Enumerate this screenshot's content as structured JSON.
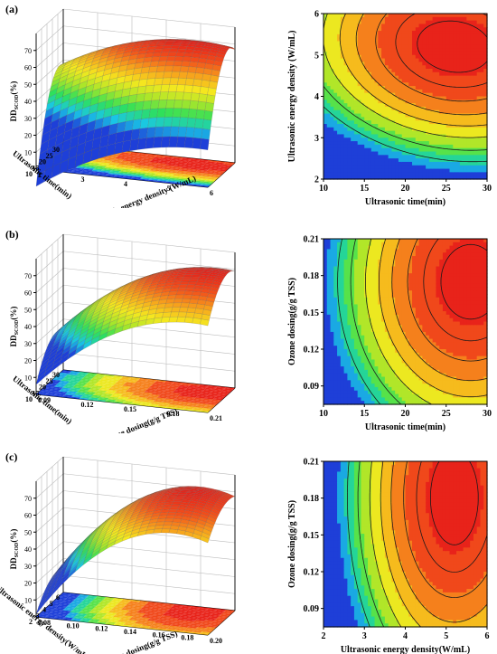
{
  "panels": [
    {
      "label": "(a)",
      "surface": {
        "zlabel": "DD",
        "zlabel_sub": "SCOD",
        "zlabel_unit": "(%)",
        "zticks": [
          "10",
          "20",
          "30",
          "40",
          "50",
          "60",
          "70"
        ],
        "x_axis_label": "Ultrasonic time(min)",
        "x_ticks": [
          "30",
          "25",
          "20",
          "15",
          "10"
        ],
        "y_axis_label": "Ultrasonic energy density (W/mL)",
        "y_ticks": [
          "6",
          "5",
          "4",
          "3",
          "2"
        ]
      },
      "contour": {
        "xlabel": "Ultrasonic time(min)",
        "ylabel": "Ultrasonic energy density (W/mL)",
        "xticks": [
          "10",
          "15",
          "20",
          "25",
          "30"
        ],
        "yticks": [
          "2",
          "3",
          "4",
          "5",
          "6"
        ]
      }
    },
    {
      "label": "(b)",
      "surface": {
        "zlabel": "DD",
        "zlabel_sub": "SCOD",
        "zlabel_unit": "(%)",
        "zticks": [
          "10",
          "20",
          "30",
          "40",
          "50",
          "60",
          "70"
        ],
        "x_axis_label": "Ultrasonic time(min)",
        "x_ticks": [
          "30",
          "25",
          "20",
          "15",
          "10"
        ],
        "y_axis_label": "Ozone dosing(g/g TSS)",
        "y_ticks": [
          "0.21",
          "0.18",
          "0.15",
          "0.12",
          "0.09"
        ]
      },
      "contour": {
        "xlabel": "Ultrasonic time(min)",
        "ylabel": "Ozone dosing(g/g TSS)",
        "xticks": [
          "10",
          "15",
          "20",
          "25",
          "30"
        ],
        "yticks": [
          "0.09",
          "0.12",
          "0.15",
          "0.18",
          "0.21"
        ]
      }
    },
    {
      "label": "(c)",
      "surface": {
        "zlabel": "DD",
        "zlabel_sub": "SCOD",
        "zlabel_unit": "(%)",
        "zticks": [
          "10",
          "20",
          "30",
          "40",
          "50",
          "60",
          "70"
        ],
        "x_axis_label": "Ultrasonic energy density(W/mL)",
        "x_ticks": [
          "6",
          "5",
          "4",
          "3",
          "2"
        ],
        "y_axis_label": "Ozone dosing(g/g TSS)",
        "y_ticks": [
          "0.20",
          "0.18",
          "0.16",
          "0.14",
          "0.12",
          "0.10",
          "0.08"
        ]
      },
      "contour": {
        "xlabel": "Ultrasonic energy density(W/mL)",
        "ylabel": "Ozone dosing(g/g TSS)",
        "xticks": [
          "2",
          "3",
          "4",
          "5",
          "6"
        ],
        "yticks": [
          "0.09",
          "0.12",
          "0.15",
          "0.18",
          "0.21"
        ]
      }
    }
  ],
  "chart_data": [
    {
      "type": "contour",
      "panel": "(a)",
      "xlabel": "Ultrasonic time(min)",
      "ylabel": "Ultrasonic energy density (W/mL)",
      "xlim": [
        10,
        30
      ],
      "ylim": [
        2,
        6
      ],
      "response": "DD SCOD (%)",
      "max_point": {
        "x": 26,
        "y": 5.2
      },
      "colormap": [
        "#1e3fd8",
        "#19c7e6",
        "#2ee05a",
        "#a8e62a",
        "#f5e81f",
        "#f7a51c",
        "#f2521b",
        "#e8231a"
      ]
    },
    {
      "type": "contour",
      "panel": "(b)",
      "xlabel": "Ultrasonic time(min)",
      "ylabel": "Ozone dosing(g/g TSS)",
      "xlim": [
        10,
        30
      ],
      "ylim": [
        0.075,
        0.21
      ],
      "response": "DD SCOD (%)",
      "max_point": {
        "x": 28,
        "y": 0.175
      },
      "colormap": [
        "#1e3fd8",
        "#19c7e6",
        "#2ee05a",
        "#a8e62a",
        "#f5e81f",
        "#f7a51c",
        "#f2521b",
        "#e8231a"
      ]
    },
    {
      "type": "contour",
      "panel": "(c)",
      "xlabel": "Ultrasonic energy density(W/mL)",
      "ylabel": "Ozone dosing(g/g TSS)",
      "xlim": [
        2,
        6
      ],
      "ylim": [
        0.075,
        0.21
      ],
      "response": "DD SCOD (%)",
      "max_point": {
        "x": 5.2,
        "y": 0.18
      },
      "colormap": [
        "#1e3fd8",
        "#19c7e6",
        "#2ee05a",
        "#a8e62a",
        "#f5e81f",
        "#f7a51c",
        "#f2521b",
        "#e8231a"
      ]
    }
  ]
}
